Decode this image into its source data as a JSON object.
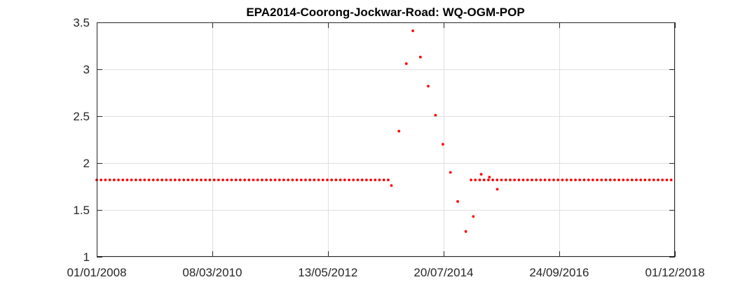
{
  "chart_data": {
    "type": "scatter",
    "title": "EPA2014-Coorong-Jockwar-Road: WQ-OGM-POP",
    "xlabel": "",
    "ylabel": "",
    "x_axis": {
      "type": "date",
      "min": "2008-01-01",
      "max": "2018-12-01",
      "ticks": [
        "2008-01-01",
        "2010-03-08",
        "2012-05-13",
        "2014-07-20",
        "2016-09-24",
        "2018-12-01"
      ],
      "tick_labels": [
        "01/01/2008",
        "08/03/2010",
        "13/05/2012",
        "20/07/2014",
        "24/09/2016",
        "01/12/2018"
      ]
    },
    "y_axis": {
      "min": 1,
      "max": 3.5,
      "ticks": [
        1,
        1.5,
        2,
        2.5,
        3,
        3.5
      ],
      "tick_labels": [
        "1",
        "1.5",
        "2",
        "2.5",
        "3",
        "3.5"
      ]
    },
    "grid": true,
    "marker_color": "#ff0000",
    "series": [
      {
        "constant_segments": [
          {
            "x_start": "2008-01-01",
            "x_end": "2013-07-10",
            "step_days": 30,
            "y": 1.82
          },
          {
            "x_start": "2015-01-25",
            "x_end": "2018-12-01",
            "step_days": 30,
            "y": 1.82
          }
        ],
        "points": [
          {
            "x": "2013-07-25",
            "y": 1.76
          },
          {
            "x": "2013-09-15",
            "y": 2.34
          },
          {
            "x": "2013-11-05",
            "y": 3.06
          },
          {
            "x": "2013-12-20",
            "y": 3.41
          },
          {
            "x": "2014-02-10",
            "y": 3.13
          },
          {
            "x": "2014-04-05",
            "y": 2.82
          },
          {
            "x": "2014-05-25",
            "y": 2.51
          },
          {
            "x": "2014-07-15",
            "y": 2.2
          },
          {
            "x": "2014-09-05",
            "y": 1.9
          },
          {
            "x": "2014-10-25",
            "y": 1.59
          },
          {
            "x": "2014-12-20",
            "y": 1.27
          },
          {
            "x": "2015-02-10",
            "y": 1.43
          },
          {
            "x": "2015-04-05",
            "y": 1.88
          },
          {
            "x": "2015-06-01",
            "y": 1.85
          },
          {
            "x": "2015-07-25",
            "y": 1.72
          }
        ]
      }
    ]
  }
}
